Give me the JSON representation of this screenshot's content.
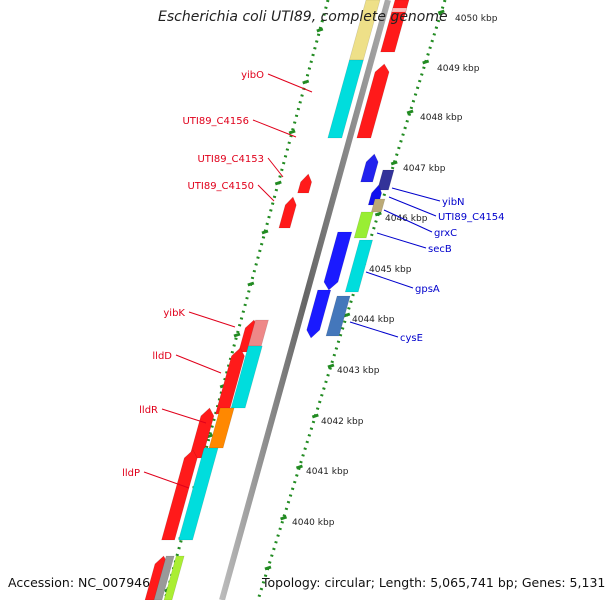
{
  "title": "Escherichia coli UTI89, complete genome",
  "footer": {
    "accession": "Accession: NC_007946",
    "summary": "Topology: circular; Length: 5,065,741 bp; Genes: 5,131"
  },
  "colors": {
    "red_label": "#e0001b",
    "blue_label": "#0000cc",
    "scale_dots": "#228b22",
    "backbone": "#888888"
  },
  "scale_labels": [
    "4050 kbp",
    "4049 kbp",
    "4048 kbp",
    "4047 kbp",
    "4046 kbp",
    "4045 kbp",
    "4044 kbp",
    "4043 kbp",
    "4042 kbp",
    "4041 kbp",
    "4040 kbp"
  ],
  "left_labels": [
    {
      "text": "yibO"
    },
    {
      "text": "UTI89_C4156"
    },
    {
      "text": "UTI89_C4153"
    },
    {
      "text": "UTI89_C4150"
    },
    {
      "text": "yibK"
    },
    {
      "text": "lldD"
    },
    {
      "text": "lldR"
    },
    {
      "text": "lldP"
    }
  ],
  "right_labels": [
    {
      "text": "yibN"
    },
    {
      "text": "UTI89_C4154"
    },
    {
      "text": "grxC"
    },
    {
      "text": "secB"
    },
    {
      "text": "gpsA"
    },
    {
      "text": "cysE"
    }
  ]
}
